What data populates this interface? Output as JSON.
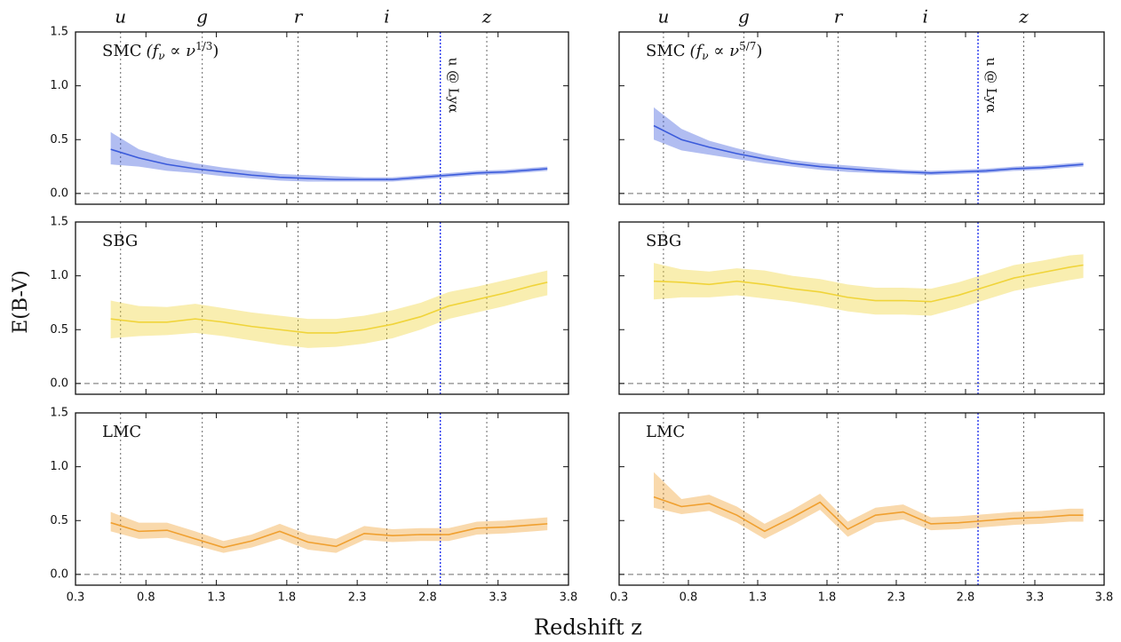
{
  "ylabel": "E(B-V)",
  "xlabel": "Redshift z",
  "reference_line": 0,
  "filters": [
    {
      "label": "u",
      "value": 0.62
    },
    {
      "label": "g",
      "value": 1.2
    },
    {
      "label": "r",
      "value": 1.88
    },
    {
      "label": "i",
      "value": 2.51
    },
    {
      "label": "z",
      "value": 3.22
    }
  ],
  "lya": {
    "label": "u @ Lyα",
    "value": 2.89
  },
  "chart_data": [
    {
      "type": "line",
      "title": "SMC",
      "title_parts": [
        "(f",
        "ν",
        " ∝ ν",
        "1/3",
        ")"
      ],
      "color": "#3b5bdb",
      "filter_labels": true,
      "lya_label": true,
      "xlim": [
        0.3,
        3.8
      ],
      "ylim": [
        -0.1,
        1.5
      ],
      "xticks": [
        0.3,
        0.8,
        1.3,
        1.8,
        2.3,
        2.8,
        3.3,
        3.8
      ],
      "yticks": [
        {
          "value": 0,
          "label": "0.0"
        },
        {
          "value": 0.5,
          "label": "0.5"
        },
        {
          "value": 1,
          "label": "1.0"
        },
        {
          "value": 1.5,
          "label": "1.5"
        }
      ],
      "x": [
        0.55,
        0.75,
        0.95,
        1.15,
        1.35,
        1.55,
        1.75,
        1.95,
        2.15,
        2.35,
        2.55,
        2.75,
        2.95,
        3.15,
        3.35,
        3.55,
        3.65
      ],
      "values": [
        0.41,
        0.33,
        0.27,
        0.23,
        0.2,
        0.17,
        0.15,
        0.14,
        0.13,
        0.13,
        0.13,
        0.15,
        0.17,
        0.19,
        0.2,
        0.22,
        0.23
      ],
      "band_lower": [
        0.27,
        0.25,
        0.21,
        0.19,
        0.16,
        0.14,
        0.12,
        0.11,
        0.11,
        0.11,
        0.11,
        0.13,
        0.15,
        0.17,
        0.18,
        0.2,
        0.21
      ],
      "band_upper": [
        0.57,
        0.41,
        0.33,
        0.28,
        0.24,
        0.21,
        0.18,
        0.17,
        0.16,
        0.15,
        0.15,
        0.17,
        0.19,
        0.21,
        0.22,
        0.24,
        0.25
      ]
    },
    {
      "type": "line",
      "title": "SMC",
      "title_parts": [
        "(f",
        "ν",
        " ∝ ν",
        "5/7",
        ")"
      ],
      "color": "#3b5bdb",
      "filter_labels": true,
      "lya_label": true,
      "xlim": [
        0.3,
        3.8
      ],
      "ylim": [
        -0.1,
        1.5
      ],
      "xticks": [
        0.3,
        0.8,
        1.3,
        1.8,
        2.3,
        2.8,
        3.3,
        3.8
      ],
      "yticks": [
        0,
        0.5,
        1,
        1.5
      ],
      "x": [
        0.55,
        0.75,
        0.95,
        1.15,
        1.35,
        1.55,
        1.75,
        1.95,
        2.15,
        2.35,
        2.55,
        2.75,
        2.95,
        3.15,
        3.35,
        3.55,
        3.65
      ],
      "values": [
        0.63,
        0.5,
        0.43,
        0.37,
        0.32,
        0.28,
        0.25,
        0.23,
        0.21,
        0.2,
        0.19,
        0.2,
        0.21,
        0.23,
        0.24,
        0.26,
        0.27
      ],
      "band_lower": [
        0.5,
        0.4,
        0.36,
        0.32,
        0.28,
        0.25,
        0.22,
        0.2,
        0.19,
        0.18,
        0.17,
        0.18,
        0.19,
        0.21,
        0.22,
        0.24,
        0.25
      ],
      "band_upper": [
        0.8,
        0.6,
        0.49,
        0.42,
        0.36,
        0.31,
        0.28,
        0.26,
        0.24,
        0.22,
        0.21,
        0.22,
        0.23,
        0.25,
        0.26,
        0.28,
        0.29
      ]
    },
    {
      "type": "line",
      "title": "SBG",
      "color": "#f0d43a",
      "xlim": [
        0.3,
        3.8
      ],
      "ylim": [
        -0.1,
        1.5
      ],
      "xticks": [
        0.3,
        0.8,
        1.3,
        1.8,
        2.3,
        2.8,
        3.3,
        3.8
      ],
      "yticks": [
        {
          "value": 0,
          "label": "0.0"
        },
        {
          "value": 0.5,
          "label": "0.5"
        },
        {
          "value": 1,
          "label": "1.0"
        },
        {
          "value": 1.5,
          "label": "1.5"
        }
      ],
      "x": [
        0.55,
        0.75,
        0.95,
        1.15,
        1.35,
        1.55,
        1.75,
        1.95,
        2.15,
        2.35,
        2.55,
        2.75,
        2.95,
        3.15,
        3.35,
        3.55,
        3.65
      ],
      "values": [
        0.6,
        0.57,
        0.57,
        0.6,
        0.57,
        0.53,
        0.5,
        0.47,
        0.47,
        0.5,
        0.55,
        0.62,
        0.72,
        0.78,
        0.84,
        0.91,
        0.94
      ],
      "band_lower": [
        0.42,
        0.44,
        0.45,
        0.47,
        0.44,
        0.4,
        0.36,
        0.33,
        0.34,
        0.37,
        0.42,
        0.5,
        0.6,
        0.66,
        0.72,
        0.79,
        0.82
      ],
      "band_upper": [
        0.77,
        0.72,
        0.71,
        0.74,
        0.7,
        0.66,
        0.63,
        0.6,
        0.6,
        0.63,
        0.68,
        0.75,
        0.85,
        0.9,
        0.96,
        1.02,
        1.05
      ]
    },
    {
      "type": "line",
      "title": "SBG",
      "color": "#f0d43a",
      "xlim": [
        0.3,
        3.8
      ],
      "ylim": [
        -0.1,
        1.5
      ],
      "xticks": [
        0.3,
        0.8,
        1.3,
        1.8,
        2.3,
        2.8,
        3.3,
        3.8
      ],
      "yticks": [
        0,
        0.5,
        1,
        1.5
      ],
      "x": [
        0.55,
        0.75,
        0.95,
        1.15,
        1.35,
        1.55,
        1.75,
        1.95,
        2.15,
        2.35,
        2.55,
        2.75,
        2.95,
        3.15,
        3.35,
        3.55,
        3.65
      ],
      "values": [
        0.95,
        0.94,
        0.92,
        0.95,
        0.92,
        0.88,
        0.85,
        0.8,
        0.77,
        0.77,
        0.76,
        0.82,
        0.9,
        0.98,
        1.03,
        1.08,
        1.1
      ],
      "band_lower": [
        0.78,
        0.8,
        0.8,
        0.82,
        0.79,
        0.76,
        0.72,
        0.67,
        0.64,
        0.64,
        0.63,
        0.7,
        0.78,
        0.86,
        0.91,
        0.96,
        0.98
      ],
      "band_upper": [
        1.12,
        1.06,
        1.04,
        1.07,
        1.05,
        1,
        0.97,
        0.92,
        0.89,
        0.89,
        0.88,
        0.94,
        1.02,
        1.1,
        1.14,
        1.19,
        1.2
      ]
    },
    {
      "type": "line",
      "title": "LMC",
      "color": "#f0a030",
      "xtick_labels": true,
      "xlim": [
        0.3,
        3.8
      ],
      "ylim": [
        -0.1,
        1.5
      ],
      "xticks": [
        0.3,
        0.8,
        1.3,
        1.8,
        2.3,
        2.8,
        3.3,
        3.8
      ],
      "yticks": [
        {
          "value": 0,
          "label": "0.0"
        },
        {
          "value": 0.5,
          "label": "0.5"
        },
        {
          "value": 1,
          "label": "1.0"
        },
        {
          "value": 1.5,
          "label": "1.5"
        }
      ],
      "x": [
        0.55,
        0.75,
        0.95,
        1.15,
        1.35,
        1.55,
        1.75,
        1.95,
        2.15,
        2.35,
        2.55,
        2.75,
        2.95,
        3.15,
        3.35,
        3.55,
        3.65
      ],
      "values": [
        0.48,
        0.4,
        0.41,
        0.33,
        0.25,
        0.31,
        0.4,
        0.3,
        0.26,
        0.38,
        0.36,
        0.37,
        0.37,
        0.43,
        0.44,
        0.46,
        0.47
      ],
      "band_lower": [
        0.4,
        0.33,
        0.34,
        0.27,
        0.2,
        0.25,
        0.33,
        0.23,
        0.2,
        0.32,
        0.3,
        0.31,
        0.31,
        0.37,
        0.38,
        0.4,
        0.41
      ],
      "band_upper": [
        0.58,
        0.48,
        0.48,
        0.4,
        0.31,
        0.37,
        0.47,
        0.37,
        0.33,
        0.45,
        0.42,
        0.43,
        0.43,
        0.49,
        0.5,
        0.52,
        0.53
      ]
    },
    {
      "type": "line",
      "title": "LMC",
      "color": "#f0a030",
      "xtick_labels": true,
      "xlim": [
        0.3,
        3.8
      ],
      "ylim": [
        -0.1,
        1.5
      ],
      "xticks": [
        0.3,
        0.8,
        1.3,
        1.8,
        2.3,
        2.8,
        3.3,
        3.8
      ],
      "yticks": [
        0,
        0.5,
        1,
        1.5
      ],
      "x": [
        0.55,
        0.75,
        0.95,
        1.15,
        1.35,
        1.55,
        1.75,
        1.95,
        2.15,
        2.35,
        2.55,
        2.75,
        2.95,
        3.15,
        3.35,
        3.55,
        3.65
      ],
      "values": [
        0.72,
        0.63,
        0.66,
        0.55,
        0.4,
        0.53,
        0.67,
        0.42,
        0.55,
        0.58,
        0.47,
        0.48,
        0.5,
        0.52,
        0.53,
        0.55,
        0.55
      ],
      "band_lower": [
        0.62,
        0.56,
        0.59,
        0.48,
        0.33,
        0.46,
        0.6,
        0.35,
        0.48,
        0.51,
        0.41,
        0.42,
        0.44,
        0.46,
        0.47,
        0.49,
        0.49
      ],
      "band_upper": [
        0.95,
        0.7,
        0.74,
        0.63,
        0.47,
        0.6,
        0.75,
        0.49,
        0.62,
        0.65,
        0.53,
        0.54,
        0.56,
        0.58,
        0.59,
        0.61,
        0.61
      ]
    }
  ]
}
